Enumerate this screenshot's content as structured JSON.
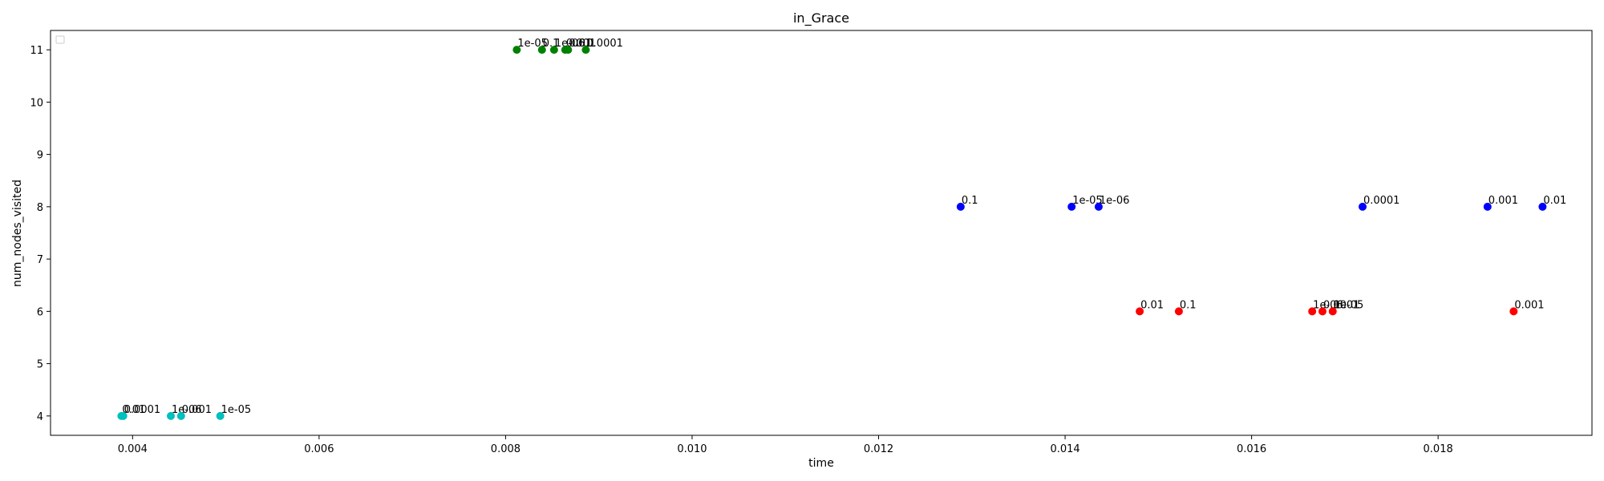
{
  "chart_data": {
    "type": "scatter",
    "title": "in_Grace",
    "xlabel": "time",
    "ylabel": "num_nodes_visited",
    "xlim": [
      0.00312,
      0.01965
    ],
    "ylim": [
      3.63,
      11.37
    ],
    "xticks": [
      "0.004",
      "0.006",
      "0.008",
      "0.010",
      "0.012",
      "0.014",
      "0.016",
      "0.018"
    ],
    "xtick_values": [
      0.004,
      0.006,
      0.008,
      0.01,
      0.012,
      0.014,
      0.016,
      0.018
    ],
    "yticks": [
      "4",
      "5",
      "6",
      "7",
      "8",
      "9",
      "10",
      "11"
    ],
    "ytick_values": [
      4,
      5,
      6,
      7,
      8,
      9,
      10,
      11
    ],
    "grid": false,
    "legend": "top-left (empty)",
    "series": [
      {
        "color": "#00bfbf",
        "points": [
          {
            "x": 0.00388,
            "y": 4,
            "label": "0.01"
          },
          {
            "x": 0.0039,
            "y": 4,
            "label": "0.0001"
          },
          {
            "x": 0.00441,
            "y": 4,
            "label": "1e-06"
          },
          {
            "x": 0.00452,
            "y": 4,
            "label": "0.001"
          },
          {
            "x": 0.00494,
            "y": 4,
            "label": "1e-05"
          }
        ]
      },
      {
        "color": "#008000",
        "points": [
          {
            "x": 0.00812,
            "y": 11,
            "label": "1e-05"
          },
          {
            "x": 0.00839,
            "y": 11,
            "label": "0.1"
          },
          {
            "x": 0.00852,
            "y": 11,
            "label": "1e-06"
          },
          {
            "x": 0.00864,
            "y": 11,
            "label": "0.001"
          },
          {
            "x": 0.00867,
            "y": 11,
            "label": "0.01"
          },
          {
            "x": 0.00886,
            "y": 11,
            "label": "0.0001"
          }
        ]
      },
      {
        "color": "#0000ff",
        "points": [
          {
            "x": 0.01288,
            "y": 8,
            "label": "0.1"
          },
          {
            "x": 0.01407,
            "y": 8,
            "label": "1e-05"
          },
          {
            "x": 0.01436,
            "y": 8,
            "label": "1e-06"
          },
          {
            "x": 0.01719,
            "y": 8,
            "label": "0.0001"
          },
          {
            "x": 0.01853,
            "y": 8,
            "label": "0.001"
          },
          {
            "x": 0.01912,
            "y": 8,
            "label": "0.01"
          }
        ]
      },
      {
        "color": "#ff0000",
        "points": [
          {
            "x": 0.0148,
            "y": 6,
            "label": "0.01"
          },
          {
            "x": 0.01522,
            "y": 6,
            "label": "0.1"
          },
          {
            "x": 0.01665,
            "y": 6,
            "label": "1e-06"
          },
          {
            "x": 0.01676,
            "y": 6,
            "label": "0.0001"
          },
          {
            "x": 0.01687,
            "y": 6,
            "label": "1e-05"
          },
          {
            "x": 0.01881,
            "y": 6,
            "label": "0.001"
          }
        ]
      }
    ]
  }
}
